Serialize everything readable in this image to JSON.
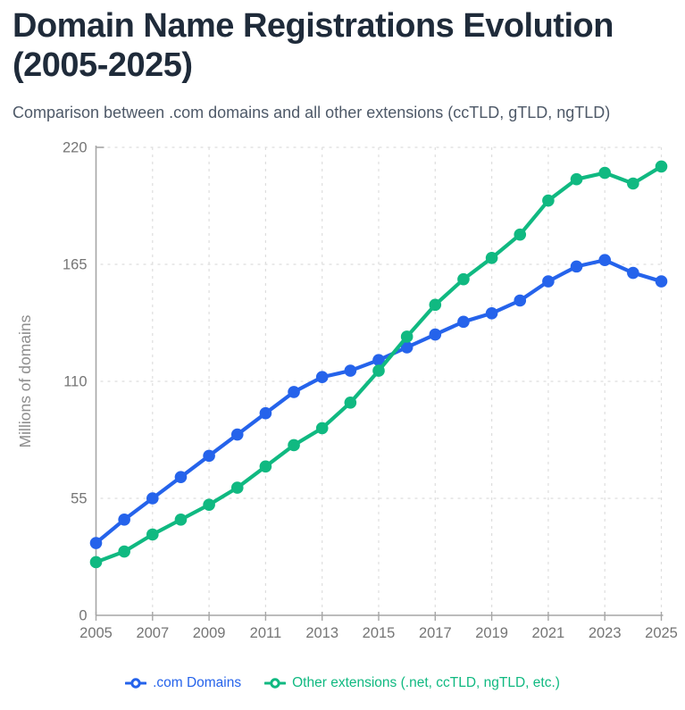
{
  "header": {
    "title": "Domain Name Registrations Evolution (2005-2025)",
    "subtitle": "Comparison between .com domains and all other extensions (ccTLD, gTLD, ngTLD)"
  },
  "chart_data": {
    "type": "line",
    "title": "Domain Name Registrations Evolution (2005-2025)",
    "xlabel": "",
    "ylabel": "Millions of domains",
    "x": [
      2005,
      2006,
      2007,
      2008,
      2009,
      2010,
      2011,
      2012,
      2013,
      2014,
      2015,
      2016,
      2017,
      2018,
      2019,
      2020,
      2021,
      2022,
      2023,
      2024,
      2025
    ],
    "series": [
      {
        "name": ".com Domains",
        "color": "#2563eb",
        "values": [
          34,
          45,
          55,
          65,
          75,
          85,
          95,
          105,
          112,
          115,
          120,
          126,
          132,
          138,
          142,
          148,
          157,
          164,
          167,
          161,
          157
        ]
      },
      {
        "name": "Other extensions (.net, ccTLD, ngTLD, etc.)",
        "color": "#10b981",
        "values": [
          25,
          30,
          38,
          45,
          52,
          60,
          70,
          80,
          88,
          100,
          115,
          131,
          146,
          158,
          168,
          179,
          195,
          205,
          208,
          203,
          211
        ]
      }
    ],
    "ylim": [
      0,
      220
    ],
    "yticks": [
      0,
      55,
      110,
      165,
      220
    ],
    "xticks": [
      2005,
      2007,
      2009,
      2011,
      2013,
      2015,
      2017,
      2019,
      2021,
      2023,
      2025
    ],
    "grid": true,
    "legend_position": "bottom",
    "colors": {
      "grid": "#dedede",
      "axis": "#a6a6a6",
      "tick_label": "#757575",
      "axis_title": "#8e8e8e"
    }
  }
}
